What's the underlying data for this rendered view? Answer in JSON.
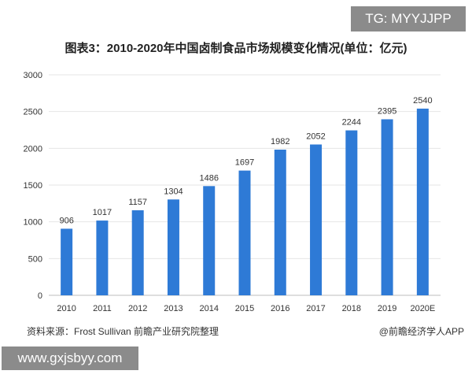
{
  "watermark_tag": "TG: MYYJJPP",
  "website_tag": "www.gxjsbyy.com",
  "source_text": "资料来源：Frost Sullivan 前瞻产业研究院整理",
  "brand_text": "@前瞻经济学人APP",
  "colors": {
    "bar": "#2e7ad6",
    "grid": "#e6e6e6",
    "tag_bg": "#8b8b8b"
  },
  "chart_data": {
    "type": "bar",
    "title": "图表3：2010-2020年中国卤制食品市场规模变化情况(单位：亿元)",
    "xlabel": "",
    "ylabel": "",
    "categories": [
      "2010",
      "2011",
      "2012",
      "2013",
      "2014",
      "2015",
      "2016",
      "2017",
      "2018",
      "2019",
      "2020E"
    ],
    "values": [
      906,
      1017,
      1157,
      1304,
      1486,
      1697,
      1982,
      2052,
      2244,
      2395,
      2540
    ],
    "ylim": [
      0,
      3000
    ],
    "yticks": [
      0,
      500,
      1000,
      1500,
      2000,
      2500,
      3000
    ],
    "grid": true
  }
}
